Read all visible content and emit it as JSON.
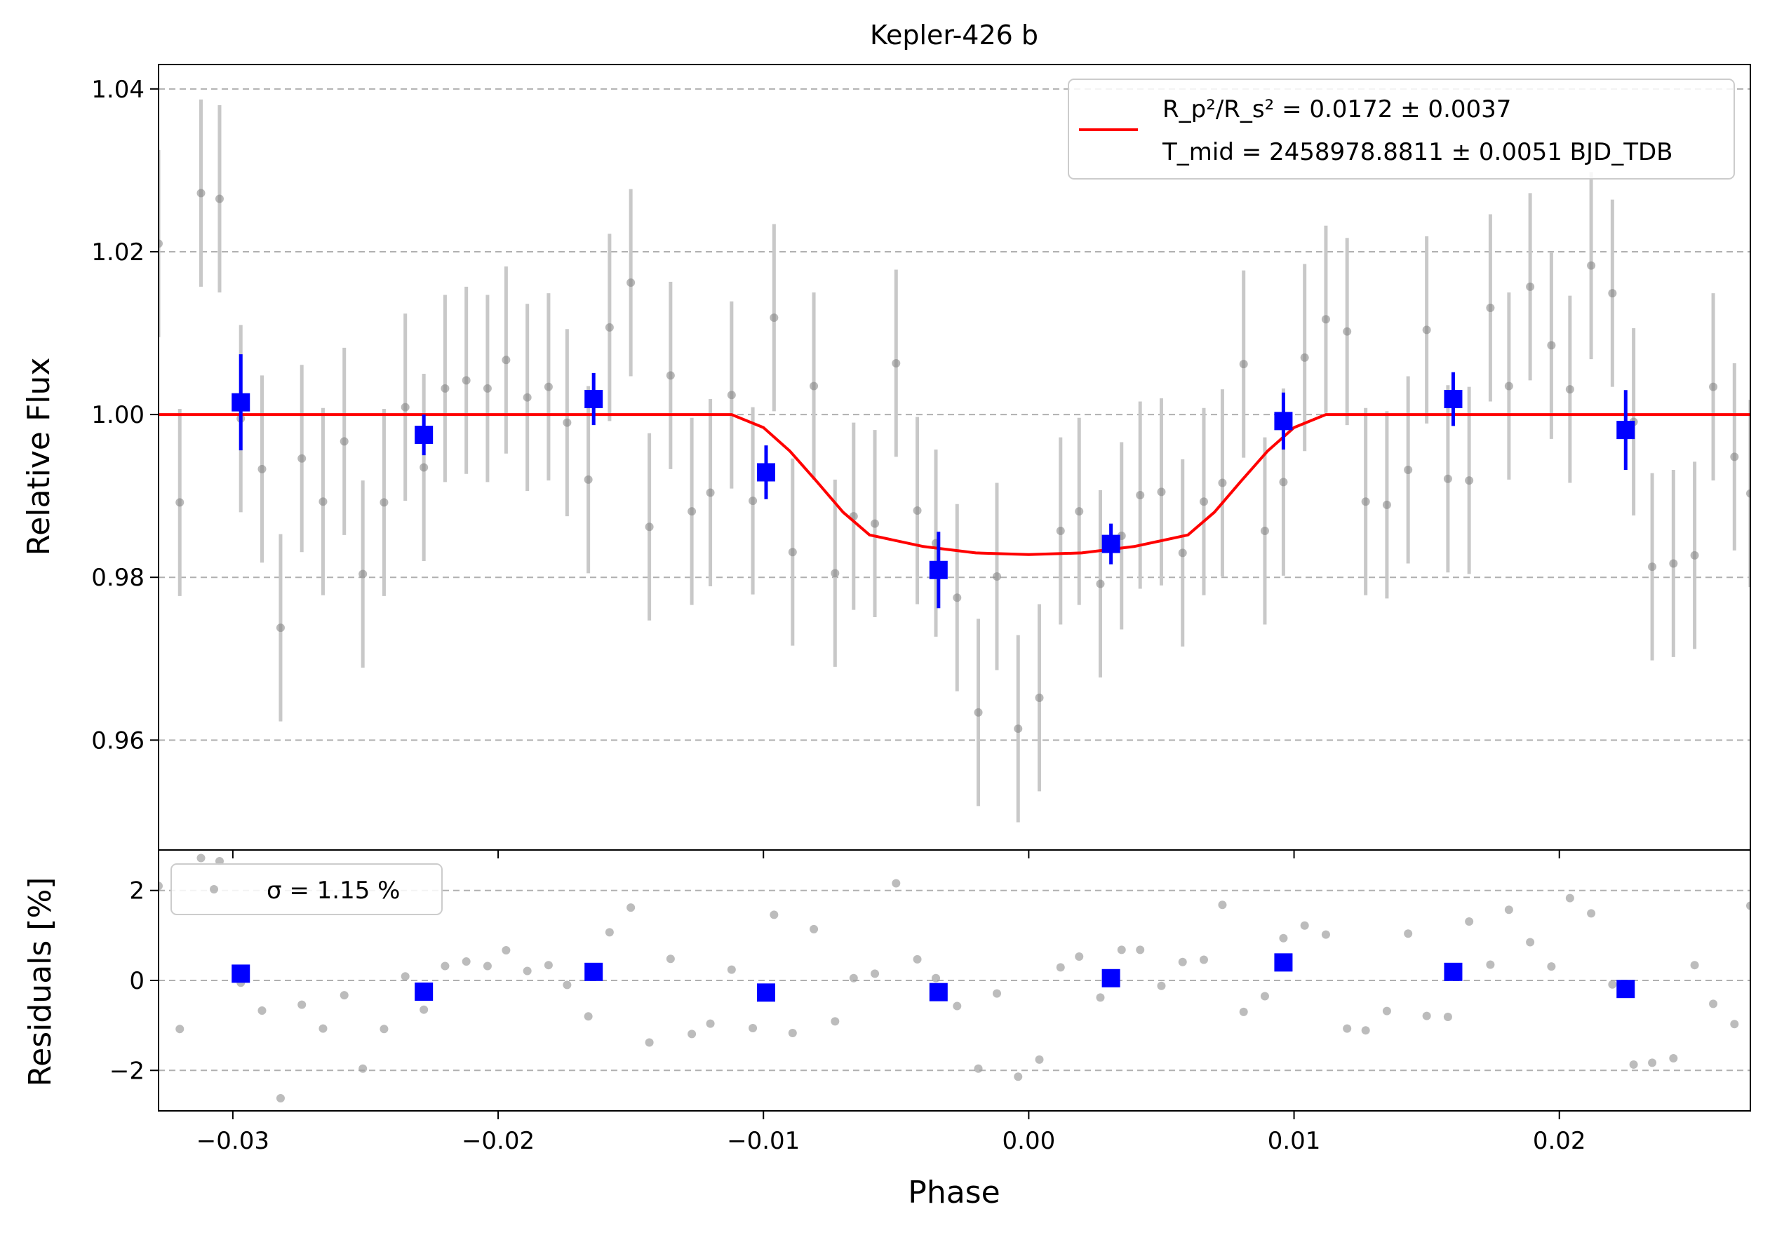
{
  "chart_data": [
    {
      "type": "scatter",
      "panel": "main",
      "title": "Kepler-426 b",
      "xlabel": "",
      "ylabel": "Relative Flux",
      "xlim": [
        -0.0328,
        0.0272
      ],
      "ylim": [
        0.9465,
        1.043
      ],
      "x_ticks": [
        -0.03,
        -0.02,
        -0.01,
        0.0,
        0.01,
        0.02
      ],
      "x_tick_labels": [
        "",
        "",
        "",
        "",
        "",
        ""
      ],
      "y_ticks": [
        0.96,
        0.98,
        1.0,
        1.02,
        1.04
      ],
      "y_tick_labels": [
        "0.96",
        "0.98",
        "1.00",
        "1.02",
        "1.04"
      ],
      "grid": "horizontal dashed",
      "legend": {
        "placement": "upper right",
        "line1": "R_p²/R_s² = 0.0172 ± 0.0037",
        "line2": "T_mid = 2458978.8811 ± 0.0051 BJD_TDB"
      },
      "colors": {
        "data": "#808080",
        "errorbar": "#c8c8c8",
        "binned": "#0000ff",
        "model": "#ff0000",
        "grid": "#b0b0b0"
      },
      "data_points": {
        "x": [
          -0.0328,
          -0.032,
          -0.0312,
          -0.0305,
          -0.0297,
          -0.0289,
          -0.0282,
          -0.0274,
          -0.0266,
          -0.0258,
          -0.0251,
          -0.0243,
          -0.0235,
          -0.0228,
          -0.022,
          -0.0212,
          -0.0204,
          -0.0197,
          -0.0189,
          -0.0181,
          -0.0174,
          -0.0166,
          -0.0158,
          -0.015,
          -0.0143,
          -0.0135,
          -0.0127,
          -0.012,
          -0.0112,
          -0.0104,
          -0.0096,
          -0.0089,
          -0.0081,
          -0.0073,
          -0.0066,
          -0.0058,
          -0.005,
          -0.0042,
          -0.0035,
          -0.0027,
          -0.0019,
          -0.0012,
          -0.0004,
          0.0004,
          0.0012,
          0.0019,
          0.0027,
          0.0035,
          0.0042,
          0.005,
          0.0058,
          0.0066,
          0.0073,
          0.0081,
          0.0089,
          0.0096,
          0.0104,
          0.0112,
          0.012,
          0.0127,
          0.0135,
          0.0143,
          0.015,
          0.0158,
          0.0166,
          0.0174,
          0.0181,
          0.0189,
          0.0197,
          0.0204,
          0.0212,
          0.022,
          0.0228,
          0.0235,
          0.0243,
          0.0251,
          0.0258,
          0.0266,
          0.0272
        ],
        "y": [
          1.021,
          0.9892,
          1.0272,
          1.0265,
          0.9995,
          0.9933,
          0.9738,
          0.9946,
          0.9893,
          0.9967,
          0.9804,
          0.9892,
          1.0009,
          0.9935,
          1.0032,
          1.0042,
          1.0032,
          1.0067,
          1.0021,
          1.0034,
          0.999,
          0.992,
          1.0107,
          1.0162,
          0.9862,
          1.0048,
          0.9881,
          0.9904,
          1.0024,
          0.9894,
          1.0119,
          0.9831,
          1.0035,
          0.9805,
          0.9875,
          0.9866,
          1.0063,
          0.9882,
          0.9842,
          0.9775,
          0.9634,
          0.9801,
          0.9614,
          0.9652,
          0.9857,
          0.9881,
          0.9792,
          0.9851,
          0.9901,
          0.9905,
          0.983,
          0.9893,
          0.9916,
          1.0062,
          0.9857,
          0.9917,
          1.007,
          1.0117,
          1.0102,
          0.9893,
          0.9889,
          0.9932,
          1.0104,
          0.9921,
          0.9919,
          1.0131,
          1.0035,
          1.0157,
          1.0085,
          1.0031,
          1.0183,
          1.0149,
          0.9991,
          0.9813,
          0.9817,
          0.9827,
          1.0034,
          0.9948,
          0.9903
        ],
        "err": [
          0.0115,
          0.0115,
          0.0115,
          0.0115,
          0.0115,
          0.0115,
          0.0115,
          0.0115,
          0.0115,
          0.0115,
          0.0115,
          0.0115,
          0.0115,
          0.0115,
          0.0115,
          0.0115,
          0.0115,
          0.0115,
          0.0115,
          0.0115,
          0.0115,
          0.0115,
          0.0115,
          0.0115,
          0.0115,
          0.0115,
          0.0115,
          0.0115,
          0.0115,
          0.0115,
          0.0115,
          0.0115,
          0.0115,
          0.0115,
          0.0115,
          0.0115,
          0.0115,
          0.0115,
          0.0115,
          0.0115,
          0.0115,
          0.0115,
          0.0115,
          0.0115,
          0.0115,
          0.0115,
          0.0115,
          0.0115,
          0.0115,
          0.0115,
          0.0115,
          0.0115,
          0.0115,
          0.0115,
          0.0115,
          0.0115,
          0.0115,
          0.0115,
          0.0115,
          0.0115,
          0.0115,
          0.0115,
          0.0115,
          0.0115,
          0.0115,
          0.0115,
          0.0115,
          0.0115,
          0.0115,
          0.0115,
          0.0115,
          0.0115,
          0.0115,
          0.0115,
          0.0115,
          0.0115,
          0.0115,
          0.0115,
          0.0115
        ]
      },
      "binned_points": {
        "x": [
          -0.0297,
          -0.0228,
          -0.0164,
          -0.0099,
          -0.0034,
          0.0031,
          0.0096,
          0.016,
          0.0225
        ],
        "y": [
          1.0015,
          0.9975,
          1.0019,
          0.9929,
          0.9809,
          0.9841,
          0.9992,
          1.0019,
          0.9981
        ],
        "err": [
          0.0059,
          0.0025,
          0.0032,
          0.0033,
          0.0047,
          0.0025,
          0.0035,
          0.0033,
          0.0049
        ]
      },
      "model": {
        "x": [
          -0.0328,
          -0.0112,
          -0.01,
          -0.009,
          -0.008,
          -0.007,
          -0.006,
          -0.004,
          -0.002,
          0.0,
          0.002,
          0.004,
          0.006,
          0.007,
          0.008,
          0.009,
          0.01,
          0.0112,
          0.0272
        ],
        "y": [
          1.0,
          1.0,
          0.9984,
          0.9955,
          0.9918,
          0.988,
          0.9852,
          0.9838,
          0.983,
          0.9828,
          0.983,
          0.9838,
          0.9852,
          0.988,
          0.9918,
          0.9955,
          0.9984,
          1.0,
          1.0
        ]
      }
    },
    {
      "type": "scatter",
      "panel": "residuals",
      "xlabel": "Phase",
      "ylabel": "Residuals [%]",
      "xlim": [
        -0.0328,
        0.0272
      ],
      "ylim": [
        -2.9,
        2.9
      ],
      "x_ticks": [
        -0.03,
        -0.02,
        -0.01,
        0.0,
        0.01,
        0.02
      ],
      "x_tick_labels": [
        "−0.03",
        "−0.02",
        "−0.01",
        "0.00",
        "0.01",
        "0.02"
      ],
      "y_ticks": [
        -2,
        0,
        2
      ],
      "y_tick_labels": [
        "−2",
        "0",
        "2"
      ],
      "grid": "horizontal dashed",
      "legend": {
        "placement": "upper left",
        "label": "σ = 1.15 %"
      },
      "colors": {
        "data": "#a0a0a0",
        "binned": "#0000ff",
        "grid": "#b0b0b0"
      },
      "data_points": {
        "x": [
          -0.0328,
          -0.032,
          -0.0312,
          -0.0305,
          -0.0297,
          -0.0289,
          -0.0282,
          -0.0274,
          -0.0266,
          -0.0258,
          -0.0251,
          -0.0243,
          -0.0235,
          -0.0228,
          -0.022,
          -0.0212,
          -0.0204,
          -0.0197,
          -0.0189,
          -0.0181,
          -0.0174,
          -0.0166,
          -0.0158,
          -0.015,
          -0.0143,
          -0.0135,
          -0.0127,
          -0.012,
          -0.0112,
          -0.0104,
          -0.0096,
          -0.0089,
          -0.0081,
          -0.0073,
          -0.0066,
          -0.0058,
          -0.005,
          -0.0042,
          -0.0035,
          -0.0027,
          -0.0019,
          -0.0012,
          -0.0004,
          0.0004,
          0.0012,
          0.0019,
          0.0027,
          0.0035,
          0.0042,
          0.005,
          0.0058,
          0.0066,
          0.0073,
          0.0081,
          0.0089,
          0.0096,
          0.0104,
          0.0112,
          0.012,
          0.0127,
          0.0135,
          0.0143,
          0.015,
          0.0158,
          0.0166,
          0.0174,
          0.0181,
          0.0189,
          0.0197,
          0.0204,
          0.0212,
          0.022,
          0.0228,
          0.0235,
          0.0243,
          0.0251,
          0.0258,
          0.0266,
          0.0272
        ],
        "y": [
          2.1,
          -1.08,
          2.72,
          2.65,
          -0.05,
          -0.67,
          -2.62,
          -0.54,
          -1.07,
          -0.33,
          -1.96,
          -1.08,
          0.09,
          -0.65,
          0.32,
          0.42,
          0.32,
          0.67,
          0.21,
          0.34,
          -0.1,
          -0.8,
          1.07,
          1.62,
          -1.38,
          0.48,
          -1.19,
          -0.96,
          0.24,
          -1.06,
          1.46,
          -1.17,
          1.14,
          -0.91,
          0.05,
          0.15,
          2.16,
          0.47,
          0.05,
          -0.57,
          -1.96,
          -0.29,
          -2.14,
          -1.76,
          0.29,
          0.53,
          -0.38,
          0.68,
          0.68,
          -0.12,
          0.41,
          0.46,
          1.68,
          -0.7,
          -0.35,
          0.94,
          1.22,
          1.02,
          -1.07,
          -1.11,
          -0.68,
          1.04,
          -0.79,
          -0.81,
          1.31,
          0.35,
          1.57,
          0.85,
          0.31,
          1.83,
          1.49,
          -0.09,
          -1.87,
          -1.83,
          -1.73,
          0.34,
          -0.52,
          -0.97,
          1.66
        ]
      },
      "binned_points": {
        "x": [
          -0.0297,
          -0.0228,
          -0.0164,
          -0.0099,
          -0.0034,
          0.0031,
          0.0096,
          0.016,
          0.0225
        ],
        "y": [
          0.15,
          -0.25,
          0.19,
          -0.27,
          -0.26,
          0.05,
          0.4,
          0.19,
          -0.19
        ]
      }
    }
  ]
}
